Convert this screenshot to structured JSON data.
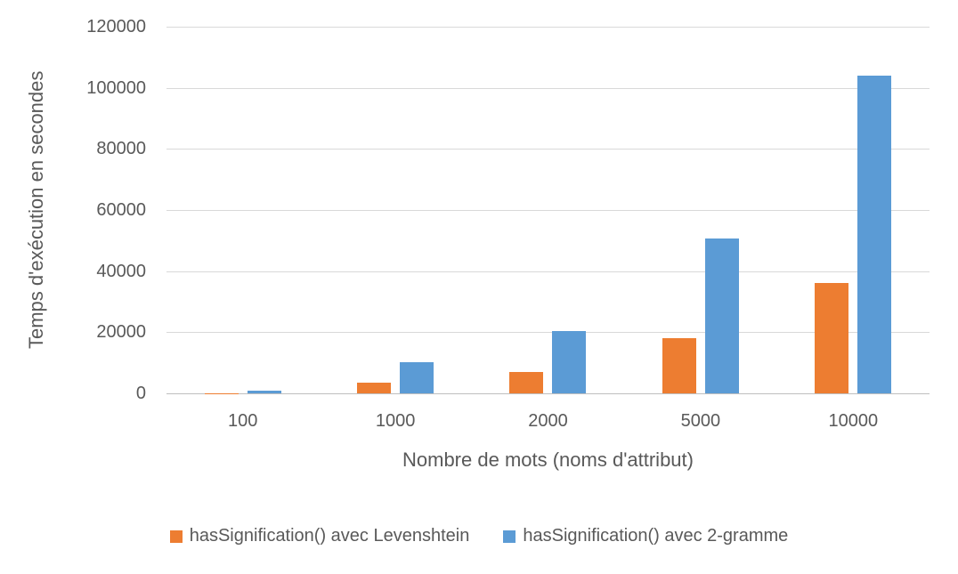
{
  "chart_data": {
    "type": "bar",
    "title": "",
    "categories": [
      "100",
      "1000",
      "2000",
      "5000",
      "10000"
    ],
    "series": [
      {
        "name": "hasSignification() avec Levenshtein",
        "color": "#ED7D31",
        "values": [
          30,
          3400,
          6900,
          18000,
          36200
        ]
      },
      {
        "name": "hasSignification() avec 2-gramme",
        "color": "#5B9BD5",
        "values": [
          1000,
          10100,
          20300,
          50600,
          104000
        ]
      }
    ],
    "xlabel": "Nombre de mots (noms d'attribut)",
    "ylabel": "Temps d'exécution en secondes",
    "ylim": [
      0,
      120000
    ],
    "yticks": [
      0,
      20000,
      40000,
      60000,
      80000,
      100000,
      120000
    ],
    "grid": true,
    "legend_position": "bottom"
  },
  "colors": {
    "text": "#595959",
    "gridline": "#d9d9d9",
    "axis_line": "#bfbfbf",
    "background": "#ffffff"
  }
}
